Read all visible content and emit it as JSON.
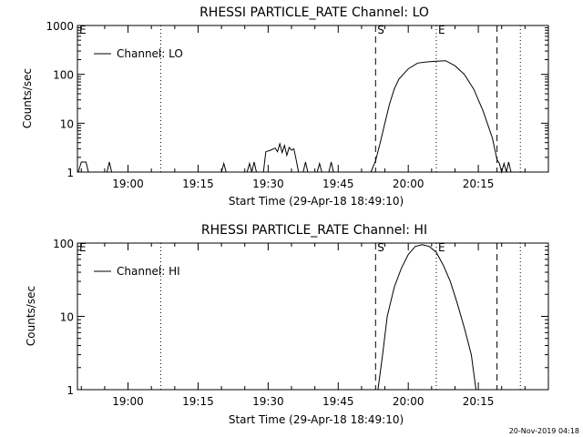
{
  "footer_text": "20-Nov-2019 04:18",
  "chart_data": [
    {
      "type": "line",
      "title": "RHESSI PARTICLE_RATE Channel: LO",
      "xlabel": "Start Time (29-Apr-18 18:49:10)",
      "ylabel": "Counts/sec",
      "xscale": "time",
      "yscale": "log",
      "xlim": [
        "18:49:10",
        "20:30:00"
      ],
      "ylim": [
        1,
        1000
      ],
      "x_tick_labels": [
        "19:00",
        "19:15",
        "19:30",
        "19:45",
        "20:00",
        "20:15"
      ],
      "y_tick_labels": [
        "1",
        "10",
        "100",
        "1000"
      ],
      "legend": {
        "position": "top-left",
        "entries": [
          "Channel: LO"
        ]
      },
      "markers": [
        {
          "label": "E",
          "time": "18:49:10",
          "style": "dotted"
        },
        {
          "label": "",
          "time": "19:07:00",
          "style": "dotted"
        },
        {
          "label": "S",
          "time": "19:53:00",
          "style": "dashed"
        },
        {
          "label": "E",
          "time": "20:06:00",
          "style": "dotted"
        },
        {
          "label": "",
          "time": "20:19:00",
          "style": "dashed"
        },
        {
          "label": "",
          "time": "20:24:00",
          "style": "dotted"
        }
      ],
      "series": [
        {
          "name": "Channel: LO",
          "points": [
            [
              "18:49:20",
              1
            ],
            [
              "18:50:00",
              1.6
            ],
            [
              "18:51:00",
              1.6
            ],
            [
              "18:51:30",
              1
            ],
            [
              "18:55:30",
              1
            ],
            [
              "18:56:00",
              1.6
            ],
            [
              "18:56:30",
              1
            ],
            [
              "19:20:00",
              1
            ],
            [
              "19:20:30",
              1.5
            ],
            [
              "19:21:00",
              1
            ],
            [
              "19:25:30",
              1
            ],
            [
              "19:26:00",
              1.5
            ],
            [
              "19:26:30",
              1
            ],
            [
              "19:27:00",
              1.6
            ],
            [
              "19:27:30",
              1
            ],
            [
              "19:29:00",
              1
            ],
            [
              "19:29:30",
              2.6
            ],
            [
              "19:30:30",
              2.8
            ],
            [
              "19:31:30",
              3.1
            ],
            [
              "19:32:00",
              2.6
            ],
            [
              "19:32:30",
              3.8
            ],
            [
              "19:33:00",
              2.5
            ],
            [
              "19:33:30",
              3.5
            ],
            [
              "19:34:00",
              2.2
            ],
            [
              "19:34:30",
              3.2
            ],
            [
              "19:35:00",
              2.8
            ],
            [
              "19:35:30",
              3.0
            ],
            [
              "19:36:00",
              1.8
            ],
            [
              "19:36:30",
              1
            ],
            [
              "19:37:30",
              1
            ],
            [
              "19:38:00",
              1.6
            ],
            [
              "19:38:30",
              1
            ],
            [
              "19:40:30",
              1
            ],
            [
              "19:41:00",
              1.5
            ],
            [
              "19:41:30",
              1
            ],
            [
              "19:43:00",
              1
            ],
            [
              "19:43:30",
              1.6
            ],
            [
              "19:44:00",
              1
            ],
            [
              "19:52:00",
              1
            ],
            [
              "19:53:00",
              1.7
            ],
            [
              "19:54:00",
              4
            ],
            [
              "19:55:00",
              10
            ],
            [
              "19:56:00",
              25
            ],
            [
              "19:57:00",
              50
            ],
            [
              "19:58:00",
              80
            ],
            [
              "20:00:00",
              130
            ],
            [
              "20:02:00",
              170
            ],
            [
              "20:04:00",
              180
            ],
            [
              "20:06:00",
              185
            ],
            [
              "20:08:00",
              190
            ],
            [
              "20:10:00",
              150
            ],
            [
              "20:12:00",
              100
            ],
            [
              "20:14:00",
              50
            ],
            [
              "20:16:00",
              18
            ],
            [
              "20:18:00",
              5
            ],
            [
              "20:19:00",
              1.8
            ],
            [
              "20:19:30",
              1.5
            ],
            [
              "20:20:00",
              1
            ],
            [
              "20:20:30",
              1.5
            ],
            [
              "20:21:00",
              1
            ],
            [
              "20:21:30",
              1.6
            ],
            [
              "20:22:00",
              1
            ]
          ]
        }
      ]
    },
    {
      "type": "line",
      "title": "RHESSI PARTICLE_RATE Channel: HI",
      "xlabel": "Start Time (29-Apr-18 18:49:10)",
      "ylabel": "Counts/sec",
      "xscale": "time",
      "yscale": "log",
      "xlim": [
        "18:49:10",
        "20:30:00"
      ],
      "ylim": [
        1,
        100
      ],
      "x_tick_labels": [
        "19:00",
        "19:15",
        "19:30",
        "19:45",
        "20:00",
        "20:15"
      ],
      "y_tick_labels": [
        "1",
        "10",
        "100"
      ],
      "legend": {
        "position": "top-left",
        "entries": [
          "Channel: HI"
        ]
      },
      "markers": [
        {
          "label": "E",
          "time": "18:49:10",
          "style": "dotted"
        },
        {
          "label": "",
          "time": "19:07:00",
          "style": "dotted"
        },
        {
          "label": "S",
          "time": "19:53:00",
          "style": "dashed"
        },
        {
          "label": "E",
          "time": "20:06:00",
          "style": "dotted"
        },
        {
          "label": "",
          "time": "20:19:00",
          "style": "dashed"
        },
        {
          "label": "",
          "time": "20:24:00",
          "style": "dotted"
        }
      ],
      "series": [
        {
          "name": "Channel: HI",
          "points": [
            [
              "19:53:30",
              1
            ],
            [
              "19:54:30",
              3
            ],
            [
              "19:55:30",
              10
            ],
            [
              "19:57:00",
              25
            ],
            [
              "19:58:30",
              45
            ],
            [
              "20:00:00",
              70
            ],
            [
              "20:01:30",
              90
            ],
            [
              "20:03:00",
              95
            ],
            [
              "20:04:30",
              90
            ],
            [
              "20:06:00",
              75
            ],
            [
              "20:07:30",
              50
            ],
            [
              "20:09:00",
              30
            ],
            [
              "20:10:30",
              15
            ],
            [
              "20:12:00",
              7
            ],
            [
              "20:13:30",
              3
            ],
            [
              "20:14:30",
              1
            ]
          ]
        }
      ]
    }
  ]
}
